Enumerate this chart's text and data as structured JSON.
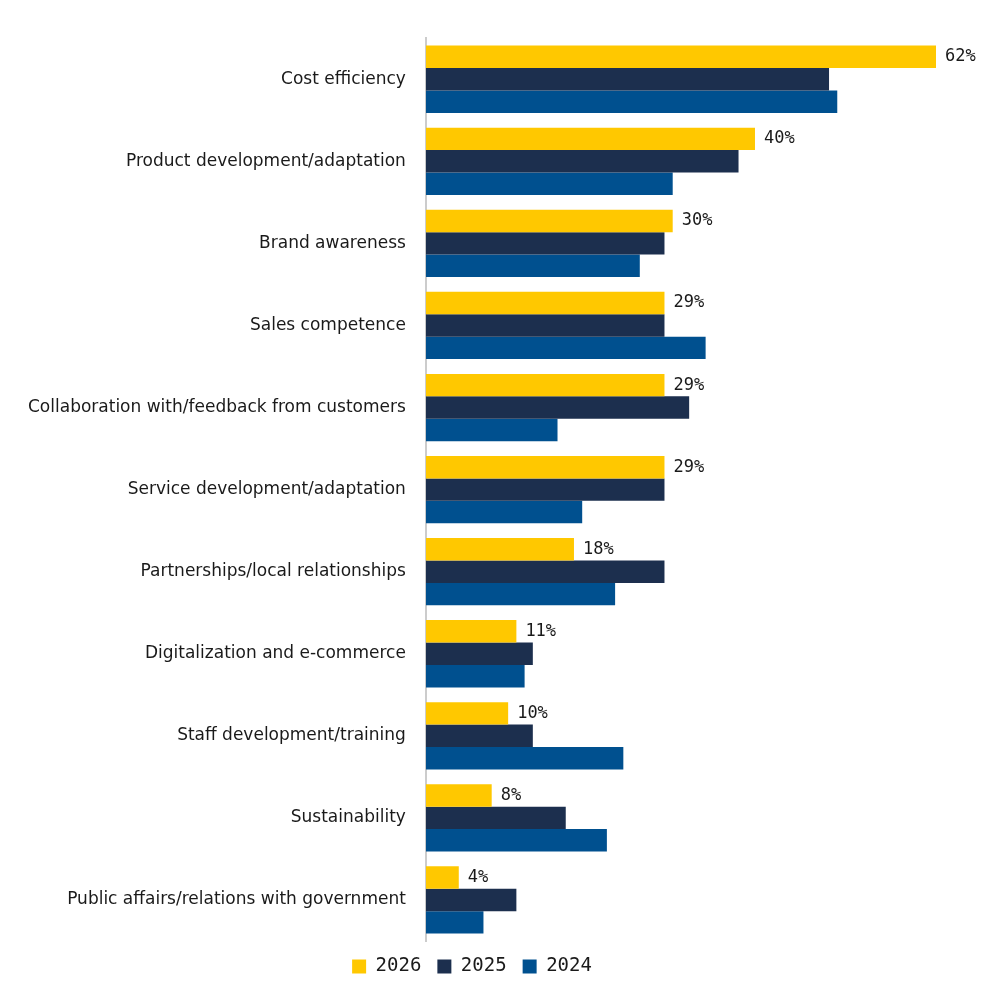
{
  "chart_data": {
    "type": "bar",
    "orientation": "horizontal",
    "categories": [
      "Cost efficiency",
      "Product development/adaptation",
      "Brand awareness",
      "Sales competence",
      "Collaboration with/feedback from customers",
      "Service development/adaptation",
      "Partnerships/local relationships",
      "Digitalization and e-commerce",
      "Staff development/training",
      "Sustainability",
      "Public affairs/relations with government"
    ],
    "series": [
      {
        "name": "2026",
        "color": "#ffc800",
        "values": [
          62,
          40,
          30,
          29,
          29,
          29,
          18,
          11,
          10,
          8,
          4
        ],
        "value_labels": [
          "62%",
          "40%",
          "30%",
          "29%",
          "29%",
          "29%",
          "18%",
          "11%",
          "10%",
          "8%",
          "4%"
        ]
      },
      {
        "name": "2025",
        "color": "#1c2f4e",
        "values": [
          49,
          38,
          29,
          29,
          32,
          29,
          29,
          13,
          13,
          17,
          11
        ]
      },
      {
        "name": "2024",
        "color": "#00508f",
        "values": [
          50,
          30,
          26,
          34,
          16,
          19,
          23,
          12,
          24,
          22,
          7
        ]
      }
    ],
    "xlim": [
      0,
      62
    ],
    "tick_labels": "y",
    "legend": "bottom"
  }
}
